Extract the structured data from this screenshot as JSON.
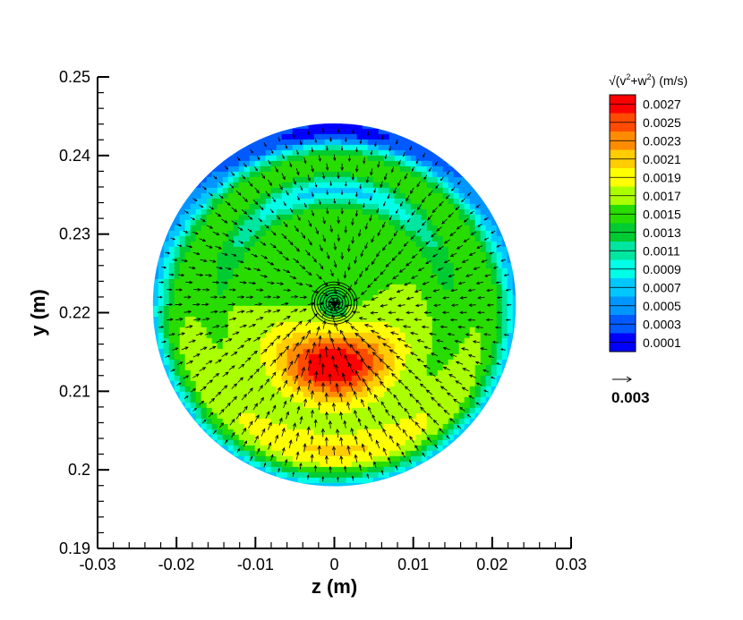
{
  "chart_data": {
    "type": "contour-vector",
    "xlabel": "z  (m)",
    "ylabel": "y  (m)",
    "xlim": [
      -0.03,
      0.03
    ],
    "ylim": [
      0.19,
      0.25
    ],
    "x_ticks": [
      "-0.03",
      "-0.02",
      "-0.01",
      "0",
      "0.01",
      "0.02",
      "0.03"
    ],
    "x_tick_values": [
      -0.03,
      -0.02,
      -0.01,
      0,
      0.01,
      0.02,
      0.03
    ],
    "y_ticks": [
      "0.19",
      "0.2",
      "0.21",
      "0.22",
      "0.23",
      "0.24",
      "0.25"
    ],
    "y_tick_values": [
      0.19,
      0.2,
      0.21,
      0.22,
      0.23,
      0.24,
      0.25
    ],
    "domain": {
      "shape": "circle",
      "center_z": 0.0,
      "center_y": 0.221,
      "radius": 0.023
    },
    "vortex_center": {
      "z": 0.0,
      "y": 0.221
    },
    "legend": {
      "title_prefix": "√(v",
      "title_mid": "+w",
      "title_suffix": ")  (m/s)",
      "sup": "2",
      "levels": [
        "0.0027",
        "0.0025",
        "0.0023",
        "0.0021",
        "0.0019",
        "0.0017",
        "0.0015",
        "0.0013",
        "0.0011",
        "0.0009",
        "0.0007",
        "0.0005",
        "0.0003",
        "0.0001"
      ],
      "level_values": [
        0.0027,
        0.0025,
        0.0023,
        0.0021,
        0.0019,
        0.0017,
        0.0015,
        0.0013,
        0.0011,
        0.0009,
        0.0007,
        0.0005,
        0.0003,
        0.0001
      ],
      "colors": [
        "#ff0000",
        "#ff4b00",
        "#ff8c00",
        "#ffcd00",
        "#ffff00",
        "#aaff00",
        "#28dc00",
        "#00cc32",
        "#00e6a0",
        "#00ffe6",
        "#00c8ff",
        "#0096ff",
        "#005aff",
        "#0000ff"
      ]
    },
    "reference_vector": {
      "label": "0.003"
    }
  }
}
